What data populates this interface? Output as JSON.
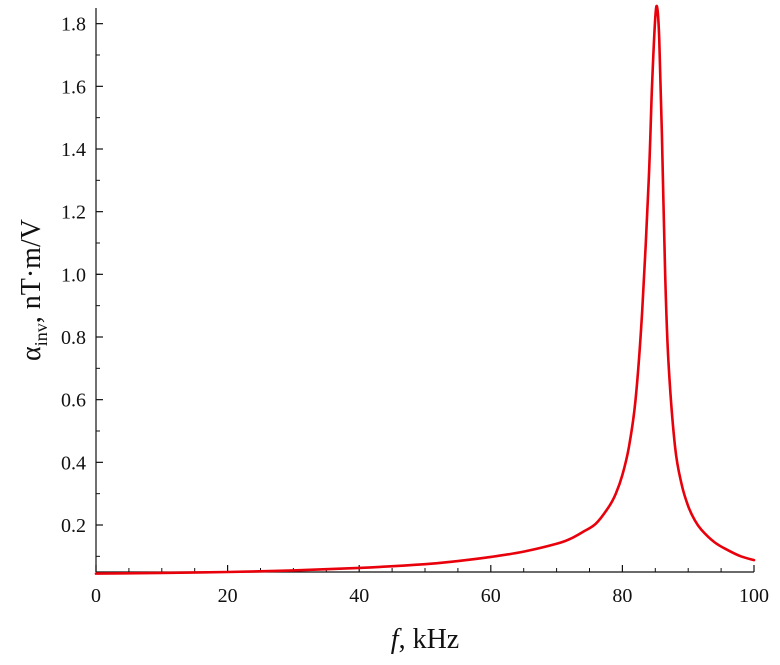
{
  "chart_data": {
    "type": "line",
    "title": "",
    "xlabel": {
      "symbol": "f",
      "rest": ", kHz"
    },
    "ylabel": {
      "symbol": "α",
      "subscript": "inv",
      "rest": ", nT·m/V"
    },
    "xlim": [
      0,
      100
    ],
    "ylim": [
      0.05,
      1.85
    ],
    "x_ticks": [
      {
        "value": 0,
        "label": "0"
      },
      {
        "value": 20,
        "label": "20"
      },
      {
        "value": 40,
        "label": "40"
      },
      {
        "value": 60,
        "label": "60"
      },
      {
        "value": 80,
        "label": "80"
      },
      {
        "value": 100,
        "label": "100"
      }
    ],
    "y_ticks": [
      {
        "value": 0.2,
        "label": "0.2"
      },
      {
        "value": 0.4,
        "label": "0.4"
      },
      {
        "value": 0.6,
        "label": "0.6"
      },
      {
        "value": 0.8,
        "label": "0.8"
      },
      {
        "value": 1.0,
        "label": "1.0"
      },
      {
        "value": 1.2,
        "label": "1.2"
      },
      {
        "value": 1.4,
        "label": "1.4"
      },
      {
        "value": 1.6,
        "label": "1.6"
      },
      {
        "value": 1.8,
        "label": "1.8"
      }
    ],
    "grid": false,
    "series": [
      {
        "color": "#e8000b",
        "x": [
          0,
          10,
          20,
          30,
          40,
          50,
          55,
          60,
          65,
          70,
          72,
          74,
          76,
          78,
          79,
          80,
          81,
          82,
          83,
          84,
          84.5,
          85,
          85.3,
          85.6,
          86,
          86.5,
          87,
          88,
          89,
          90,
          91,
          92,
          94,
          96,
          98,
          100
        ],
        "y": [
          0.045,
          0.047,
          0.05,
          0.055,
          0.063,
          0.075,
          0.085,
          0.098,
          0.115,
          0.14,
          0.155,
          0.178,
          0.205,
          0.26,
          0.3,
          0.36,
          0.45,
          0.6,
          0.88,
          1.3,
          1.6,
          1.82,
          1.85,
          1.75,
          1.45,
          1.0,
          0.72,
          0.45,
          0.33,
          0.26,
          0.215,
          0.185,
          0.145,
          0.12,
          0.1,
          0.088
        ]
      }
    ]
  }
}
